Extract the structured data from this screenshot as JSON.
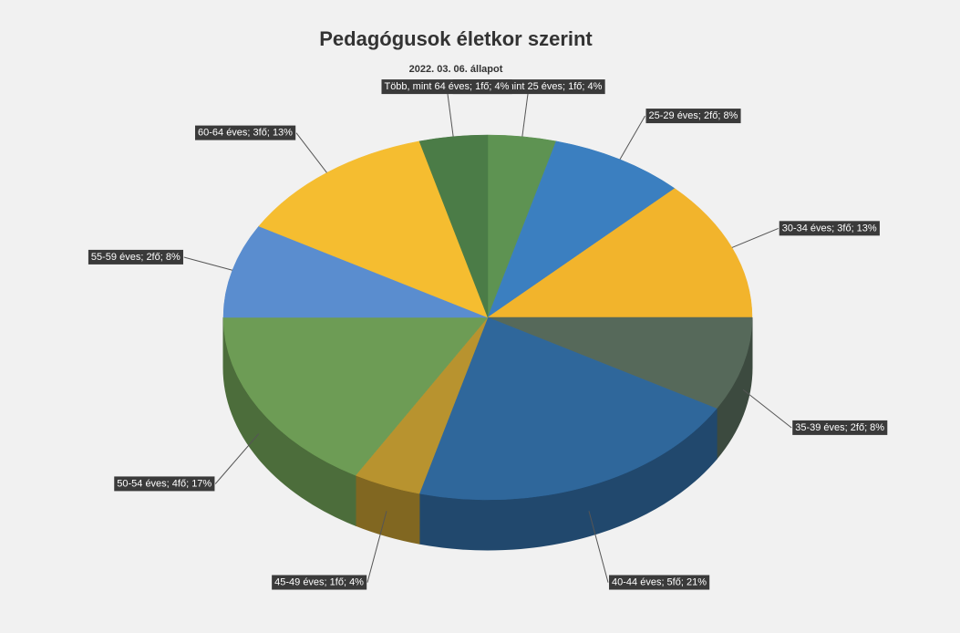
{
  "chart_data": {
    "type": "pie3d",
    "title": "Pedagógusok életkor szerint",
    "subtitle": "2022. 03. 06. állapot",
    "categories": [
      "Kevesebb, mint 25 éves",
      "25-29 éves",
      "30-34 éves",
      "35-39 éves",
      "40-44 éves",
      "45-49 éves",
      "50-54 éves",
      "55-59 éves",
      "60-64 éves",
      "Több, mint 64 éves"
    ],
    "values": [
      1,
      2,
      3,
      2,
      5,
      1,
      4,
      2,
      3,
      1
    ],
    "value_labels": [
      "Kevesebb, mint 25 éves; 1fő; 4%",
      "25-29 éves; 2fő; 8%",
      "30-34 éves; 3fő; 13%",
      "35-39 éves; 2fő; 8%",
      "40-44 éves; 5fő; 21%",
      "45-49 éves; 1fő; 4%",
      "50-54 éves; 4fő; 17%",
      "55-59 éves; 2fő; 8%",
      "60-64 éves; 3fő; 13%",
      "Több, mint 64 éves; 1fő; 4%"
    ],
    "colors": [
      "#5e9352",
      "#3b7fc0",
      "#f2b42c",
      "#56695a",
      "#2f679b",
      "#b8932f",
      "#6d9c55",
      "#5a8dcf",
      "#f5bd30",
      "#4b7c47"
    ]
  }
}
